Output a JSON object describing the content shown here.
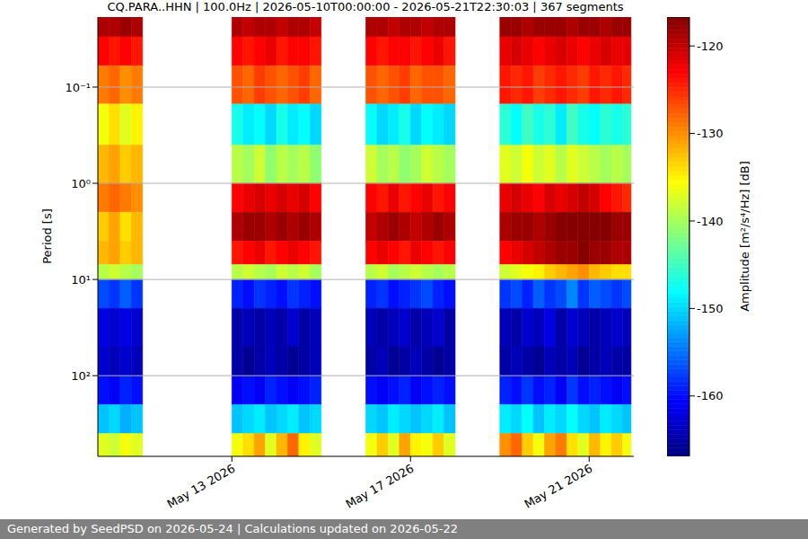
{
  "chart_data": {
    "type": "heatmap",
    "title": "CQ.PARA..HHN | 100.0Hz | 2026-05-10T00:00:00 - 2026-05-21T22:30:03 | 367 segments",
    "ylabel": "Period [s]",
    "footer": "Generated by SeedPSD on 2026-05-24 | Calculations updated on 2026-05-22",
    "log": "y",
    "grid": true,
    "xlim": [
      "2026-05-10T00:00",
      "2026-05-22T00:00"
    ],
    "xticks": [
      {
        "value": "2026-05-13T00:00",
        "label": "May 13 2026"
      },
      {
        "value": "2026-05-17T00:00",
        "label": "May 17 2026"
      },
      {
        "value": "2026-05-21T00:00",
        "label": "May 21 2026"
      }
    ],
    "ylim": [
      0.0187,
      690
    ],
    "yticks": [
      {
        "value": 0.1,
        "label": "10⁻¹"
      },
      {
        "value": 1,
        "label": "10⁰"
      },
      {
        "value": 10,
        "label": "10¹"
      },
      {
        "value": 100,
        "label": "10²"
      }
    ],
    "x_bins": [
      "2026-05-10T00:00",
      "2026-05-10T06:00",
      "2026-05-10T12:00",
      "2026-05-10T18:00",
      "2026-05-11T00:00",
      "2026-05-11T06:00",
      "2026-05-11T12:00",
      "2026-05-11T18:00",
      "2026-05-12T00:00",
      "2026-05-12T06:00",
      "2026-05-12T12:00",
      "2026-05-12T18:00",
      "2026-05-13T00:00",
      "2026-05-13T06:00",
      "2026-05-13T12:00",
      "2026-05-13T18:00",
      "2026-05-14T00:00",
      "2026-05-14T06:00",
      "2026-05-14T12:00",
      "2026-05-14T18:00",
      "2026-05-15T00:00",
      "2026-05-15T06:00",
      "2026-05-15T12:00",
      "2026-05-15T18:00",
      "2026-05-16T00:00",
      "2026-05-16T06:00",
      "2026-05-16T12:00",
      "2026-05-16T18:00",
      "2026-05-17T00:00",
      "2026-05-17T06:00",
      "2026-05-17T12:00",
      "2026-05-17T18:00",
      "2026-05-18T00:00",
      "2026-05-18T06:00",
      "2026-05-18T12:00",
      "2026-05-18T18:00",
      "2026-05-19T00:00",
      "2026-05-19T06:00",
      "2026-05-19T12:00",
      "2026-05-19T18:00",
      "2026-05-20T00:00",
      "2026-05-20T06:00",
      "2026-05-20T12:00",
      "2026-05-20T18:00",
      "2026-05-21T00:00",
      "2026-05-21T06:00",
      "2026-05-21T12:00",
      "2026-05-21T18:00",
      "2026-05-21T22:30"
    ],
    "y_bins": [
      0.0187,
      0.03,
      0.06,
      0.15,
      0.4,
      1,
      2,
      4,
      7,
      10,
      20,
      50,
      100,
      200,
      400,
      690
    ],
    "values": [
      [
        -119,
        -119,
        -118,
        -119,
        null,
        null,
        null,
        null,
        null,
        null,
        null,
        null,
        -119,
        -120,
        -119,
        -119,
        -120,
        -119,
        -119,
        -120,
        null,
        null,
        null,
        null,
        -119,
        -119,
        -120,
        -119,
        -119,
        -120,
        -119,
        -119,
        null,
        null,
        null,
        null,
        -118,
        -118,
        -119,
        -118,
        -118,
        -118,
        -119,
        -118,
        -118,
        -119,
        -118,
        -118
      ],
      [
        -123,
        -124,
        -123,
        -124,
        null,
        null,
        null,
        null,
        null,
        null,
        null,
        null,
        -123,
        -124,
        -123,
        -122,
        -124,
        -123,
        -123,
        -124,
        null,
        null,
        null,
        null,
        -123,
        -124,
        -123,
        -123,
        -124,
        -123,
        -122,
        -124,
        null,
        null,
        null,
        null,
        -122,
        -121,
        -122,
        -123,
        -122,
        -121,
        -122,
        -123,
        -122,
        -121,
        -122,
        -122
      ],
      [
        -129,
        -128,
        -130,
        -129,
        null,
        null,
        null,
        null,
        null,
        null,
        null,
        null,
        -127,
        -128,
        -126,
        -127,
        -128,
        -127,
        -126,
        -128,
        null,
        null,
        null,
        null,
        -127,
        -128,
        -127,
        -126,
        -128,
        -127,
        -127,
        -128,
        null,
        null,
        null,
        null,
        -124,
        -125,
        -124,
        -126,
        -125,
        -124,
        -125,
        -126,
        -124,
        -125,
        -124,
        -125
      ],
      [
        -136,
        -134,
        -137,
        -135,
        null,
        null,
        null,
        null,
        null,
        null,
        null,
        null,
        -147,
        -149,
        -148,
        -150,
        -147,
        -149,
        -148,
        -150,
        null,
        null,
        null,
        null,
        -148,
        -150,
        -149,
        -147,
        -150,
        -148,
        -149,
        -150,
        null,
        null,
        null,
        null,
        -146,
        -148,
        -145,
        -147,
        -146,
        -149,
        -145,
        -147,
        -148,
        -146,
        -147,
        -146
      ],
      [
        -132,
        -131,
        -133,
        -132,
        null,
        null,
        null,
        null,
        null,
        null,
        null,
        null,
        -139,
        -140,
        -138,
        -141,
        -139,
        -140,
        -139,
        -141,
        null,
        null,
        null,
        null,
        -138,
        -140,
        -139,
        -141,
        -140,
        -138,
        -139,
        -140,
        null,
        null,
        null,
        null,
        -137,
        -138,
        -136,
        -138,
        -137,
        -139,
        -137,
        -138,
        -139,
        -140,
        -139,
        -140
      ],
      [
        -129,
        -128,
        -129,
        -130,
        null,
        null,
        null,
        null,
        null,
        null,
        null,
        null,
        -123,
        -122,
        -121,
        -122,
        -121,
        -122,
        -121,
        -123,
        null,
        null,
        null,
        null,
        -123,
        -124,
        -122,
        -124,
        -123,
        -122,
        -124,
        -123,
        null,
        null,
        null,
        null,
        -122,
        -121,
        -122,
        -123,
        -121,
        -122,
        -121,
        -120,
        -121,
        -123,
        -124,
        -125
      ],
      [
        -133,
        -131,
        -134,
        -132,
        null,
        null,
        null,
        null,
        null,
        null,
        null,
        null,
        -119,
        -118,
        -118,
        -119,
        -118,
        -119,
        -118,
        -119,
        null,
        null,
        null,
        null,
        -120,
        -119,
        -118,
        -119,
        -120,
        -119,
        -118,
        -119,
        null,
        null,
        null,
        null,
        -119,
        -118,
        -118,
        -119,
        -118,
        -117,
        -117,
        -117,
        -117,
        -117,
        -118,
        -118
      ],
      [
        -132,
        -131,
        -133,
        -132,
        null,
        null,
        null,
        null,
        null,
        null,
        null,
        null,
        -124,
        -123,
        -122,
        -124,
        -123,
        -122,
        -123,
        -124,
        null,
        null,
        null,
        null,
        -123,
        -122,
        -123,
        -124,
        -122,
        -123,
        -124,
        -123,
        null,
        null,
        null,
        null,
        -123,
        -122,
        -121,
        -120,
        -119,
        -118,
        -118,
        -117,
        -118,
        -118,
        -119,
        -119
      ],
      [
        -139,
        -138,
        -139,
        -140,
        null,
        null,
        null,
        null,
        null,
        null,
        null,
        null,
        -139,
        -138,
        -139,
        -140,
        -138,
        -139,
        -138,
        -140,
        null,
        null,
        null,
        null,
        -139,
        -138,
        -140,
        -139,
        -138,
        -139,
        -140,
        -139,
        null,
        null,
        null,
        null,
        -138,
        -137,
        -136,
        -135,
        -133,
        -132,
        -131,
        -130,
        -132,
        -133,
        -134,
        -134
      ],
      [
        -157,
        -158,
        -156,
        -158,
        null,
        null,
        null,
        null,
        null,
        null,
        null,
        null,
        -159,
        -160,
        -158,
        -159,
        -160,
        -158,
        -159,
        -160,
        null,
        null,
        null,
        null,
        -159,
        -158,
        -160,
        -159,
        -158,
        -157,
        -159,
        -160,
        null,
        null,
        null,
        null,
        -158,
        -157,
        -159,
        -156,
        -158,
        -157,
        -154,
        -158,
        -156,
        -157,
        -158,
        -157
      ],
      [
        -162,
        -163,
        -162,
        -163,
        null,
        null,
        null,
        null,
        null,
        null,
        null,
        null,
        -165,
        -164,
        -165,
        -164,
        -165,
        -163,
        -165,
        -164,
        null,
        null,
        null,
        null,
        -164,
        -165,
        -164,
        -163,
        -165,
        -164,
        -163,
        -165,
        null,
        null,
        null,
        null,
        -164,
        -165,
        -163,
        -164,
        -162,
        -165,
        -163,
        -164,
        -165,
        -164,
        -163,
        -164
      ],
      [
        -163,
        -164,
        -163,
        -164,
        null,
        null,
        null,
        null,
        null,
        null,
        null,
        null,
        -165,
        -166,
        -165,
        -164,
        -165,
        -166,
        -165,
        -164,
        null,
        null,
        null,
        null,
        -165,
        -164,
        -166,
        -165,
        -164,
        -165,
        -166,
        -165,
        null,
        null,
        null,
        null,
        -165,
        -164,
        -165,
        -166,
        -164,
        -165,
        -164,
        -166,
        -165,
        -164,
        -165,
        -165
      ],
      [
        -160,
        -161,
        -159,
        -160,
        null,
        null,
        null,
        null,
        null,
        null,
        null,
        null,
        -161,
        -160,
        -161,
        -159,
        -160,
        -161,
        -160,
        -159,
        null,
        null,
        null,
        null,
        -160,
        -161,
        -160,
        -159,
        -161,
        -160,
        -159,
        -160,
        null,
        null,
        null,
        null,
        -159,
        -160,
        -158,
        -160,
        -159,
        -161,
        -158,
        -160,
        -159,
        -160,
        -161,
        -160
      ],
      [
        -151,
        -150,
        -152,
        -151,
        null,
        null,
        null,
        null,
        null,
        null,
        null,
        null,
        -151,
        -150,
        -149,
        -151,
        -150,
        -149,
        -151,
        -150,
        null,
        null,
        null,
        null,
        -150,
        -151,
        -149,
        -150,
        -151,
        -150,
        -149,
        -151,
        null,
        null,
        null,
        null,
        -149,
        -150,
        -148,
        -151,
        -149,
        -150,
        -148,
        -150,
        -151,
        -149,
        -150,
        -151
      ],
      [
        -137,
        -138,
        -136,
        -137,
        null,
        null,
        null,
        null,
        null,
        null,
        null,
        null,
        -136,
        -134,
        -131,
        -137,
        -132,
        -128,
        -135,
        -137,
        null,
        null,
        null,
        null,
        -136,
        -133,
        -137,
        -131,
        -135,
        -136,
        -133,
        -137,
        null,
        null,
        null,
        null,
        -130,
        -128,
        -133,
        -136,
        -131,
        -129,
        -134,
        -137,
        -132,
        -135,
        -133,
        -136
      ]
    ],
    "colorbar": {
      "label": "Amplitude [m²/s⁴/Hz] [dB]",
      "lim": [
        -166.9,
        -116.7
      ],
      "ticks": [
        -160,
        -150,
        -140,
        -130,
        -120
      ]
    }
  }
}
